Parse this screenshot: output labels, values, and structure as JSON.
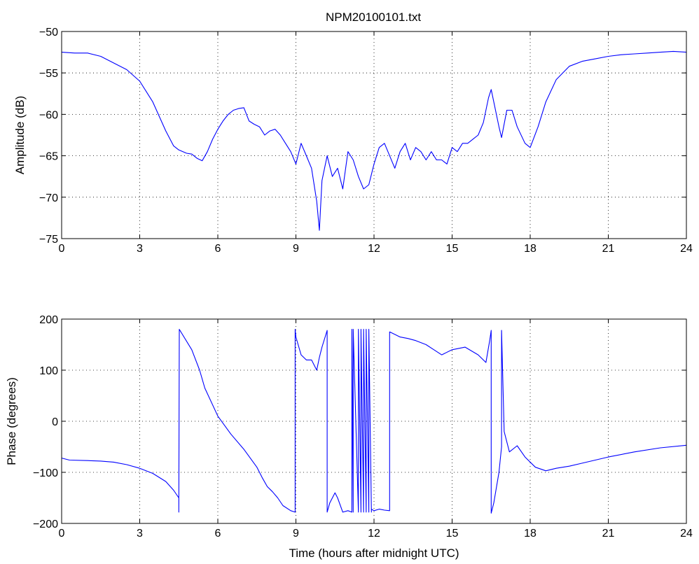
{
  "figure": {
    "title": "NPM20100101.txt"
  },
  "chart_data": [
    {
      "type": "line",
      "title": "NPM20100101.txt",
      "xlabel": "",
      "ylabel": "Amplitude (dB)",
      "xlim": [
        0,
        24
      ],
      "ylim": [
        -75,
        -50
      ],
      "xticks": [
        0,
        3,
        6,
        9,
        12,
        15,
        18,
        21,
        24
      ],
      "yticks": [
        -75,
        -70,
        -65,
        -60,
        -55,
        -50
      ],
      "xtick_labels": [
        "0",
        "3",
        "6",
        "9",
        "12",
        "15",
        "18",
        "21",
        "24"
      ],
      "ytick_labels": [
        "−75",
        "−70",
        "−65",
        "−60",
        "−55",
        "−50"
      ],
      "grid": true,
      "color": "#0000ff",
      "series": [
        {
          "x": [
            0,
            0.5,
            1.0,
            1.5,
            2.0,
            2.5,
            3.0,
            3.5,
            4.0,
            4.3,
            4.5,
            4.8,
            5.0,
            5.2,
            5.4,
            5.6,
            5.8,
            6.0,
            6.2,
            6.4,
            6.6,
            6.8,
            7.0,
            7.2,
            7.4,
            7.6,
            7.8,
            8.0,
            8.2,
            8.4,
            8.6,
            8.8,
            9.0,
            9.2,
            9.4,
            9.6,
            9.8,
            9.9,
            10.0,
            10.2,
            10.4,
            10.6,
            10.8,
            11.0,
            11.2,
            11.4,
            11.6,
            11.8,
            12.0,
            12.2,
            12.4,
            12.6,
            12.8,
            13.0,
            13.2,
            13.4,
            13.6,
            13.8,
            14.0,
            14.2,
            14.4,
            14.6,
            14.8,
            15.0,
            15.2,
            15.4,
            15.6,
            15.8,
            16.0,
            16.2,
            16.4,
            16.5,
            16.6,
            16.8,
            16.9,
            17.1,
            17.3,
            17.5,
            17.8,
            18.0,
            18.3,
            18.6,
            19.0,
            19.5,
            20.0,
            20.5,
            21.0,
            21.5,
            22.0,
            22.5,
            23.0,
            23.5,
            24.0
          ],
          "y": [
            -52.5,
            -52.6,
            -52.6,
            -53.0,
            -53.8,
            -54.6,
            -56.0,
            -58.5,
            -62.0,
            -63.8,
            -64.3,
            -64.7,
            -64.8,
            -65.3,
            -65.6,
            -64.5,
            -63.0,
            -61.8,
            -60.8,
            -60.0,
            -59.5,
            -59.3,
            -59.2,
            -60.8,
            -61.2,
            -61.5,
            -62.5,
            -62.0,
            -61.8,
            -62.5,
            -63.5,
            -64.5,
            -66.0,
            -63.5,
            -65.0,
            -66.5,
            -70.5,
            -74.0,
            -68.0,
            -65.0,
            -67.5,
            -66.5,
            -69.0,
            -64.5,
            -65.5,
            -67.5,
            -69.0,
            -68.5,
            -66.0,
            -64.0,
            -63.5,
            -65.0,
            -66.5,
            -64.5,
            -63.5,
            -65.5,
            -64.0,
            -64.5,
            -65.5,
            -64.5,
            -65.5,
            -65.5,
            -66.0,
            -64.0,
            -64.5,
            -63.5,
            -63.5,
            -63.0,
            -62.5,
            -61.0,
            -58.0,
            -57.0,
            -58.5,
            -61.5,
            -62.8,
            -59.5,
            -59.5,
            -61.5,
            -63.5,
            -64.0,
            -61.5,
            -58.5,
            -55.8,
            -54.2,
            -53.6,
            -53.3,
            -53.0,
            -52.8,
            -52.7,
            -52.6,
            -52.5,
            -52.4,
            -52.5
          ]
        }
      ]
    },
    {
      "type": "line",
      "title": "",
      "xlabel": "Time (hours after midnight UTC)",
      "ylabel": "Phase (degrees)",
      "xlim": [
        0,
        24
      ],
      "ylim": [
        -200,
        200
      ],
      "xticks": [
        0,
        3,
        6,
        9,
        12,
        15,
        18,
        21,
        24
      ],
      "yticks": [
        -200,
        -100,
        0,
        100,
        200
      ],
      "xtick_labels": [
        "0",
        "3",
        "6",
        "9",
        "12",
        "15",
        "18",
        "21",
        "24"
      ],
      "ytick_labels": [
        "−200",
        "−100",
        "0",
        "100",
        "200"
      ],
      "grid": true,
      "color": "#0000ff",
      "series": [
        {
          "x": [
            0,
            0.3,
            1.0,
            1.5,
            2.0,
            2.5,
            3.0,
            3.5,
            4.0,
            4.3,
            4.5,
            4.5,
            4.52,
            5.0,
            5.3,
            5.5,
            6.0,
            6.5,
            7.0,
            7.5,
            7.7,
            7.9,
            8.1,
            8.3,
            8.5,
            8.8,
            8.97,
            8.97,
            9.0,
            9.2,
            9.4,
            9.6,
            9.8,
            9.9,
            10.0,
            10.2,
            10.2,
            10.3,
            10.5,
            10.6,
            10.8,
            11.0,
            11.15,
            11.15,
            11.2,
            11.2,
            11.4,
            11.4,
            11.5,
            11.5,
            11.6,
            11.6,
            11.7,
            11.7,
            11.8,
            11.8,
            11.9,
            11.9,
            12.0,
            12.2,
            12.4,
            12.6,
            12.6,
            12.8,
            13.0,
            13.3,
            13.6,
            14.0,
            14.3,
            14.6,
            15.0,
            15.5,
            16.0,
            16.3,
            16.45,
            16.5,
            16.5,
            16.6,
            16.8,
            16.9,
            16.9,
            17.0,
            17.2,
            17.5,
            17.8,
            18.2,
            18.6,
            19.0,
            19.5,
            20.0,
            21.0,
            22.0,
            23.0,
            24.0
          ],
          "y": [
            -72,
            -76,
            -77,
            -78,
            -80,
            -85,
            -92,
            -102,
            -118,
            -135,
            -150,
            -178,
            180,
            140,
            100,
            65,
            10,
            -25,
            -55,
            -90,
            -110,
            -128,
            -138,
            -150,
            -165,
            -175,
            -178,
            180,
            165,
            130,
            120,
            120,
            100,
            125,
            145,
            178,
            -178,
            -160,
            -140,
            -150,
            -178,
            -175,
            -178,
            180,
            -178,
            180,
            -178,
            180,
            -178,
            180,
            -178,
            180,
            -178,
            180,
            -178,
            180,
            -178,
            -172,
            -175,
            -172,
            -174,
            -175,
            175,
            170,
            165,
            162,
            158,
            150,
            140,
            130,
            140,
            145,
            130,
            115,
            160,
            178,
            -180,
            -160,
            -100,
            -50,
            178,
            -20,
            -60,
            -48,
            -70,
            -90,
            -97,
            -92,
            -88,
            -82,
            -70,
            -60,
            -52,
            -47
          ]
        }
      ]
    }
  ]
}
